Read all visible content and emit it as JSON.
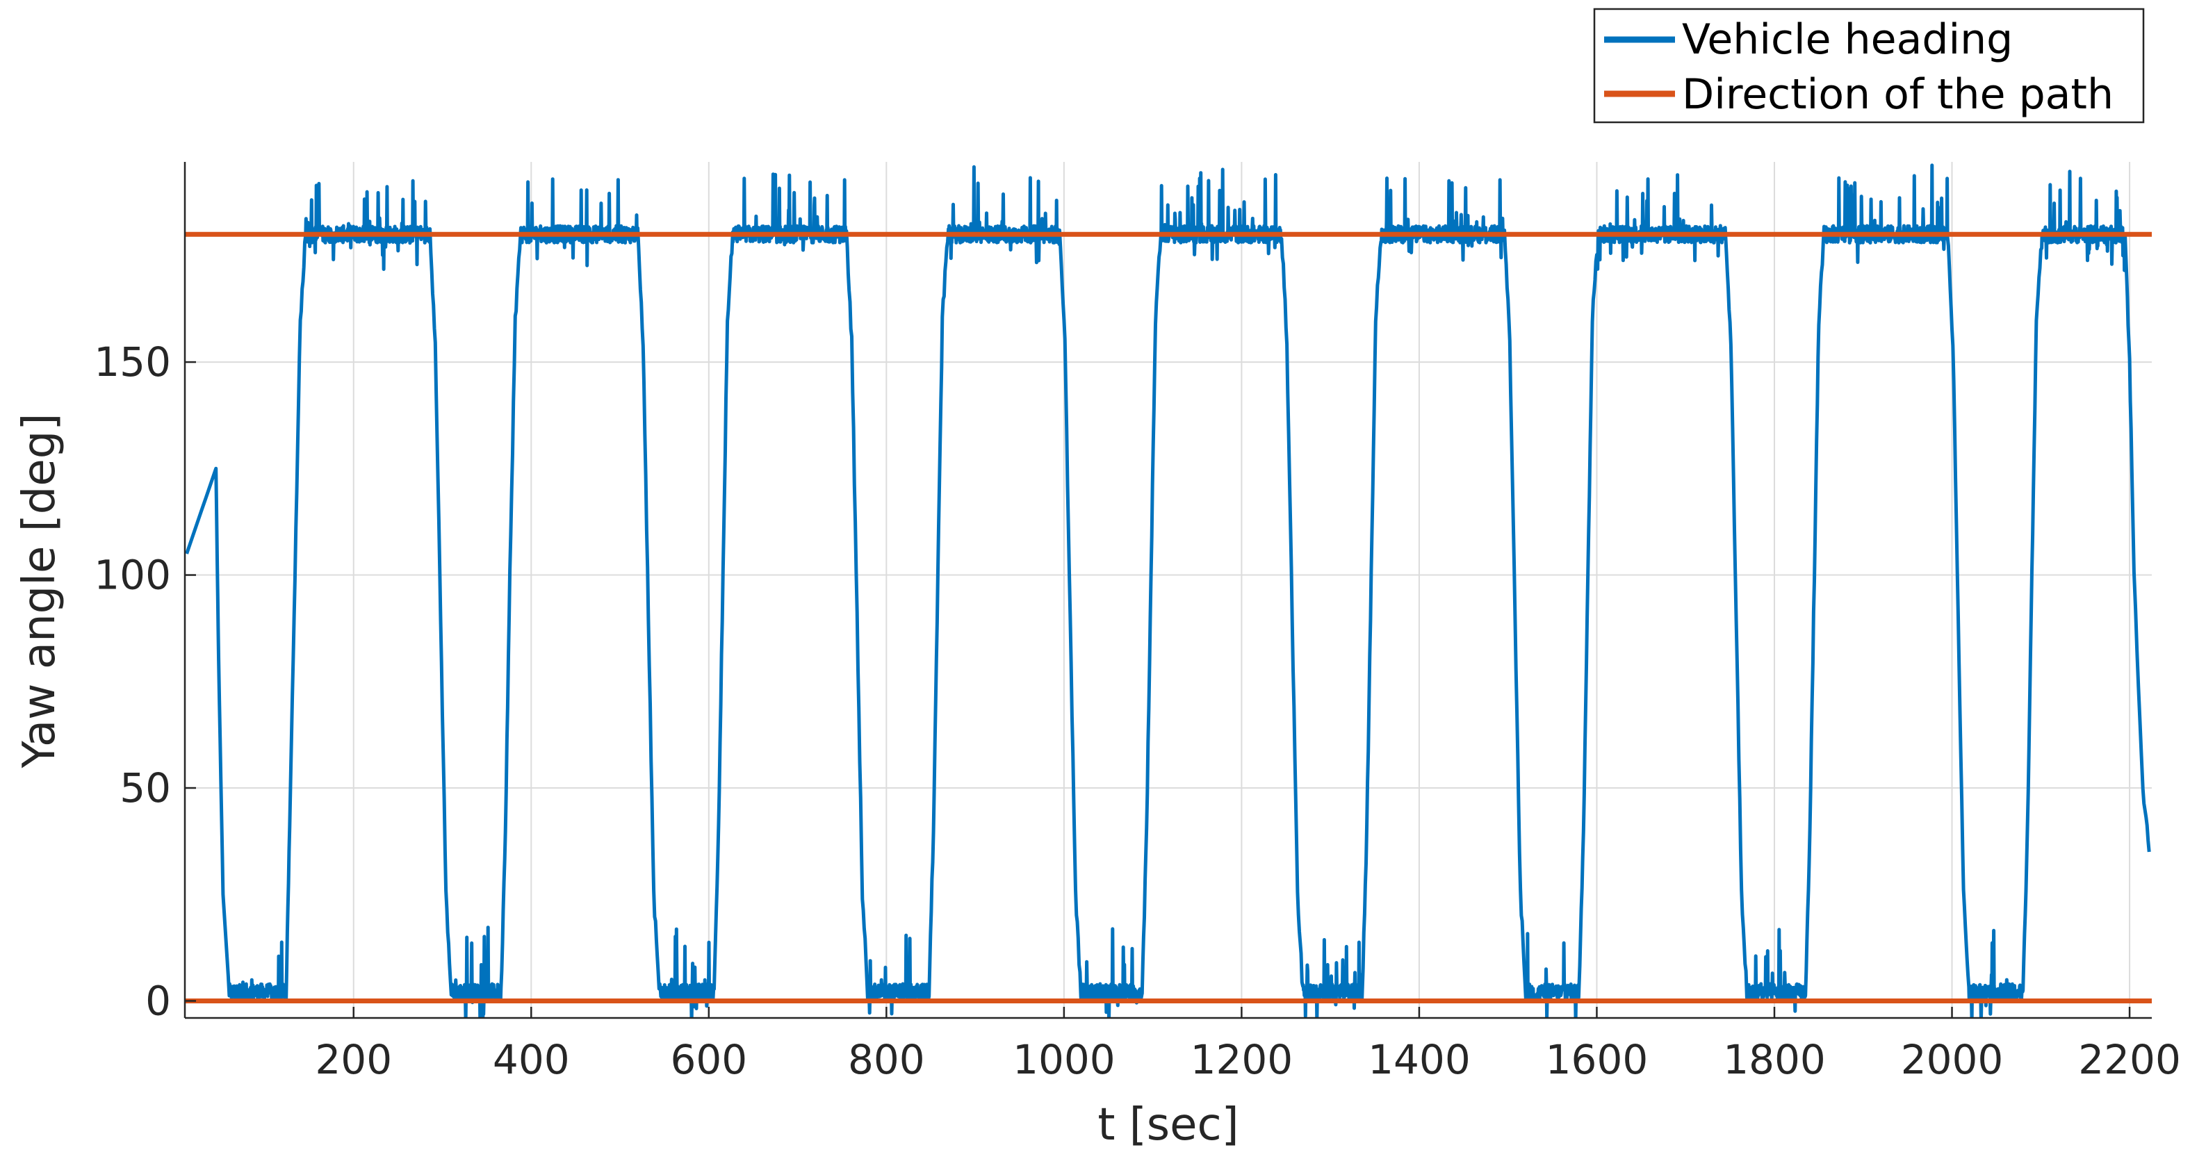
{
  "chart_data": {
    "type": "line",
    "title": "",
    "xlabel": "t [sec]",
    "ylabel": "Yaw angle [deg]",
    "xlim": [
      10,
      2225
    ],
    "ylim": [
      -4,
      197
    ],
    "xticks": [
      200,
      400,
      600,
      800,
      1000,
      1200,
      1400,
      1600,
      1800,
      2000,
      2200
    ],
    "yticks": [
      0,
      50,
      100,
      150
    ],
    "grid": true,
    "legend_position": "top-right, outside plot area",
    "series": [
      {
        "name": "Vehicle heading",
        "color": "#0072BD",
        "style": "noisy line",
        "x": [
          12,
          45,
          48,
          53,
          60,
          124,
          128,
          134,
          140,
          146,
          286,
          292,
          298,
          304,
          310,
          366,
          371,
          376,
          382,
          388,
          520,
          526,
          532,
          538,
          544,
          606,
          611,
          616,
          621,
          627,
          755,
          761,
          767,
          773,
          779,
          848,
          853,
          858,
          863,
          869,
          995,
          1001,
          1007,
          1013,
          1019,
          1088,
          1093,
          1098,
          1103,
          1109,
          1245,
          1251,
          1257,
          1263,
          1269,
          1336,
          1341,
          1346,
          1351,
          1357,
          1496,
          1502,
          1508,
          1514,
          1520,
          1580,
          1585,
          1590,
          1595,
          1601,
          1745,
          1751,
          1757,
          1763,
          1769,
          1835,
          1840,
          1845,
          1850,
          1856,
          1995,
          2001,
          2007,
          2013,
          2019,
          2080,
          2085,
          2090,
          2095,
          2101,
          2195,
          2200,
          2205,
          2215,
          2222
        ],
        "y": [
          105,
          125,
          80,
          25,
          2,
          2,
          40,
          100,
          160,
          180,
          180,
          155,
          90,
          25,
          2,
          2,
          40,
          100,
          160,
          180,
          180,
          155,
          90,
          25,
          2,
          2,
          40,
          100,
          160,
          180,
          180,
          155,
          90,
          25,
          2,
          2,
          40,
          100,
          160,
          180,
          180,
          155,
          90,
          25,
          2,
          2,
          40,
          100,
          160,
          180,
          180,
          155,
          90,
          25,
          2,
          2,
          40,
          100,
          160,
          180,
          180,
          155,
          90,
          25,
          2,
          2,
          40,
          100,
          160,
          180,
          180,
          155,
          90,
          25,
          2,
          2,
          40,
          100,
          160,
          180,
          180,
          155,
          90,
          25,
          2,
          2,
          40,
          100,
          160,
          180,
          180,
          150,
          100,
          50,
          35
        ]
      },
      {
        "name": "Direction of the path",
        "color": "#D95319",
        "style": "horizontal reference lines",
        "levels": [
          0,
          180
        ]
      }
    ]
  }
}
